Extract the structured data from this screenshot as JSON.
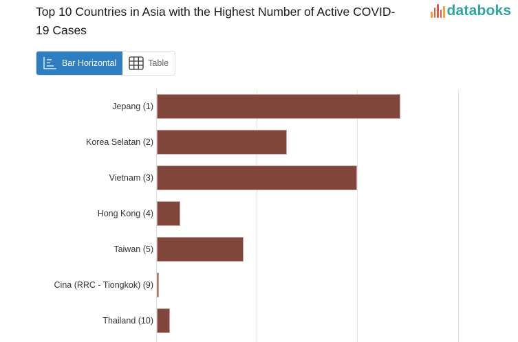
{
  "header": {
    "title": "Top 10 Countries in Asia with the Highest Number of Active COVID-19 Cases",
    "logo_text": "databoks"
  },
  "toggle": {
    "bar_label": "Bar Horizontal",
    "table_label": "Table",
    "active": "Bar Horizontal"
  },
  "colors": {
    "bar": "#80453b",
    "toggle_active": "#2d7fc1",
    "logo_text": "#2fa79f"
  },
  "chart_data": {
    "type": "bar",
    "orientation": "horizontal",
    "title": "Top 10 Countries in Asia with the Highest Number of Active COVID-19 Cases",
    "xlabel": "",
    "ylabel": "",
    "categories": [
      "Jepang (1)",
      "Korea Selatan (2)",
      "Vietnam (3)",
      "Hong Kong (4)",
      "Taiwan (5)",
      "Cina (RRC - Tiongkok) (9)",
      "Thailand (10)"
    ],
    "values": [
      2.42,
      1.29,
      1.99,
      0.23,
      0.86,
      0.02,
      0.13
    ],
    "value_units": "relative gridline units (axis tick labels not visible)",
    "xlim": [
      0,
      3
    ],
    "grid": true,
    "gridlines": [
      0,
      1,
      2,
      3
    ],
    "legend": "none"
  }
}
